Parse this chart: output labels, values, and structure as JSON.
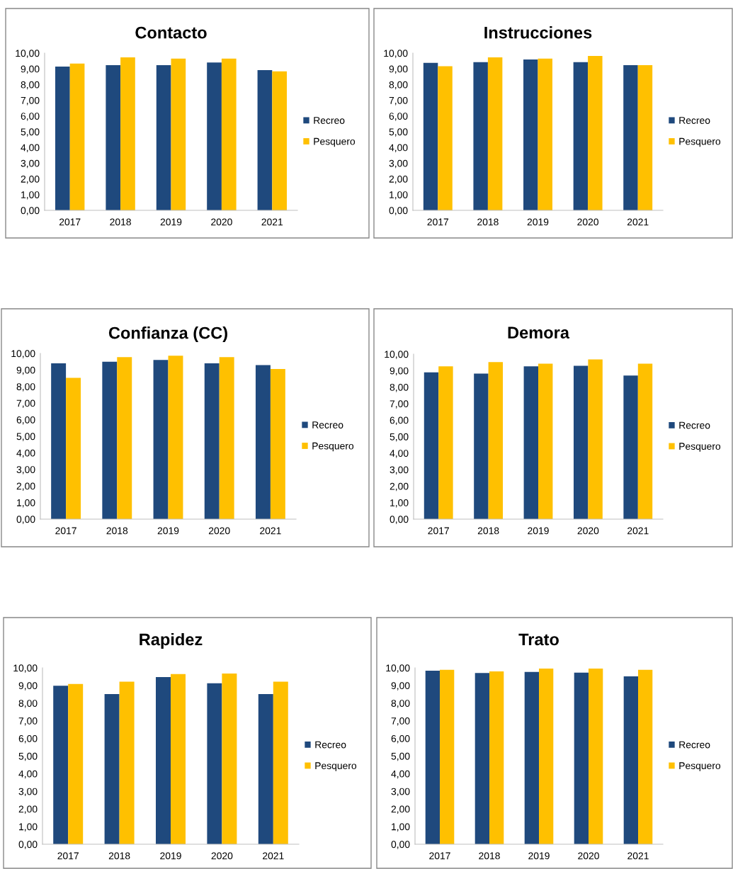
{
  "chart_data": [
    {
      "type": "bar",
      "title": "Contacto",
      "categories": [
        "2017",
        "2018",
        "2019",
        "2020",
        "2021"
      ],
      "ylim": [
        0,
        10
      ],
      "yticks": [
        {
          "value": 0,
          "label": "0,00"
        },
        {
          "value": 1,
          "label": "1,00"
        },
        {
          "value": 2,
          "label": "2,00"
        },
        {
          "value": 3,
          "label": "3,00"
        },
        {
          "value": 4,
          "label": "4,00"
        },
        {
          "value": 5,
          "label": "5,00"
        },
        {
          "value": 6,
          "label": "6,00"
        },
        {
          "value": 7,
          "label": "7,00"
        },
        {
          "value": 8,
          "label": "8,00"
        },
        {
          "value": 9,
          "label": "9,00"
        },
        {
          "value": 10,
          "label": "10,00"
        }
      ],
      "legend": "right",
      "grid": false,
      "series": [
        {
          "name": "Recreo",
          "color": "#1f497d",
          "values": [
            9.14,
            9.23,
            9.23,
            9.4,
            8.92
          ]
        },
        {
          "name": "Pesquero",
          "color": "#ffc000",
          "values": [
            9.34,
            9.73,
            9.65,
            9.65,
            8.84
          ]
        }
      ]
    },
    {
      "type": "bar",
      "title": "Instrucciones",
      "categories": [
        "2017",
        "2018",
        "2019",
        "2020",
        "2021"
      ],
      "ylim": [
        0,
        10
      ],
      "yticks": [
        {
          "value": 0,
          "label": "0,00"
        },
        {
          "value": 1,
          "label": "1,00"
        },
        {
          "value": 2,
          "label": "2,00"
        },
        {
          "value": 3,
          "label": "3,00"
        },
        {
          "value": 4,
          "label": "4,00"
        },
        {
          "value": 5,
          "label": "5,00"
        },
        {
          "value": 6,
          "label": "6,00"
        },
        {
          "value": 7,
          "label": "7,00"
        },
        {
          "value": 8,
          "label": "8,00"
        },
        {
          "value": 9,
          "label": "9,00"
        },
        {
          "value": 10,
          "label": "10,00"
        }
      ],
      "legend": "right",
      "grid": false,
      "series": [
        {
          "name": "Recreo",
          "color": "#1f497d",
          "values": [
            9.38,
            9.43,
            9.59,
            9.43,
            9.23
          ]
        },
        {
          "name": "Pesquero",
          "color": "#ffc000",
          "values": [
            9.17,
            9.73,
            9.65,
            9.82,
            9.23
          ]
        }
      ]
    },
    {
      "type": "bar",
      "title": "Confianza (CC)",
      "categories": [
        "2017",
        "2018",
        "2019",
        "2020",
        "2021"
      ],
      "ylim": [
        0,
        10
      ],
      "yticks": [
        {
          "value": 0,
          "label": "0,00"
        },
        {
          "value": 1,
          "label": "1,00"
        },
        {
          "value": 2,
          "label": "2,00"
        },
        {
          "value": 3,
          "label": "3,00"
        },
        {
          "value": 4,
          "label": "4,00"
        },
        {
          "value": 5,
          "label": "5,00"
        },
        {
          "value": 6,
          "label": "6,00"
        },
        {
          "value": 7,
          "label": "7,00"
        },
        {
          "value": 8,
          "label": "8,00"
        },
        {
          "value": 9,
          "label": "9,00"
        },
        {
          "value": 10,
          "label": "10,00"
        }
      ],
      "legend": "right",
      "grid": false,
      "series": [
        {
          "name": "Recreo",
          "color": "#1f497d",
          "values": [
            9.4,
            9.5,
            9.6,
            9.4,
            9.29
          ]
        },
        {
          "name": "Pesquero",
          "color": "#ffc000",
          "values": [
            8.53,
            9.78,
            9.86,
            9.78,
            9.06
          ]
        }
      ]
    },
    {
      "type": "bar",
      "title": "Demora",
      "categories": [
        "2017",
        "2018",
        "2019",
        "2020",
        "2021"
      ],
      "ylim": [
        0,
        10
      ],
      "yticks": [
        {
          "value": 0,
          "label": "0,00"
        },
        {
          "value": 1,
          "label": "1,00"
        },
        {
          "value": 2,
          "label": "2,00"
        },
        {
          "value": 3,
          "label": "3,00"
        },
        {
          "value": 4,
          "label": "4,00"
        },
        {
          "value": 5,
          "label": "5,00"
        },
        {
          "value": 6,
          "label": "6,00"
        },
        {
          "value": 7,
          "label": "7,00"
        },
        {
          "value": 8,
          "label": "8,00"
        },
        {
          "value": 9,
          "label": "9,00"
        },
        {
          "value": 10,
          "label": "10,00"
        }
      ],
      "legend": "right",
      "grid": false,
      "series": [
        {
          "name": "Recreo",
          "color": "#1f497d",
          "values": [
            8.9,
            8.82,
            9.26,
            9.29,
            8.7
          ]
        },
        {
          "name": "Pesquero",
          "color": "#ffc000",
          "values": [
            9.26,
            9.52,
            9.42,
            9.68,
            9.42
          ]
        }
      ]
    },
    {
      "type": "bar",
      "title": "Rapidez",
      "categories": [
        "2017",
        "2018",
        "2019",
        "2020",
        "2021"
      ],
      "ylim": [
        0,
        10
      ],
      "yticks": [
        {
          "value": 0,
          "label": "0,00"
        },
        {
          "value": 1,
          "label": "1,00"
        },
        {
          "value": 2,
          "label": "2,00"
        },
        {
          "value": 3,
          "label": "3,00"
        },
        {
          "value": 4,
          "label": "4,00"
        },
        {
          "value": 5,
          "label": "5,00"
        },
        {
          "value": 6,
          "label": "6,00"
        },
        {
          "value": 7,
          "label": "7,00"
        },
        {
          "value": 8,
          "label": "8,00"
        },
        {
          "value": 9,
          "label": "9,00"
        },
        {
          "value": 10,
          "label": "10,00"
        }
      ],
      "legend": "right",
      "grid": false,
      "series": [
        {
          "name": "Recreo",
          "color": "#1f497d",
          "values": [
            8.99,
            8.51,
            9.48,
            9.13,
            8.51
          ]
        },
        {
          "name": "Pesquero",
          "color": "#ffc000",
          "values": [
            9.09,
            9.22,
            9.65,
            9.68,
            9.22
          ]
        }
      ]
    },
    {
      "type": "bar",
      "title": "Trato",
      "categories": [
        "2017",
        "2018",
        "2019",
        "2020",
        "2021"
      ],
      "ylim": [
        0,
        10
      ],
      "yticks": [
        {
          "value": 0,
          "label": "0,00"
        },
        {
          "value": 1,
          "label": "1,00"
        },
        {
          "value": 2,
          "label": "2,00"
        },
        {
          "value": 3,
          "label": "3,00"
        },
        {
          "value": 4,
          "label": "4,00"
        },
        {
          "value": 5,
          "label": "5,00"
        },
        {
          "value": 6,
          "label": "6,00"
        },
        {
          "value": 7,
          "label": "7,00"
        },
        {
          "value": 8,
          "label": "8,00"
        },
        {
          "value": 9,
          "label": "9,00"
        },
        {
          "value": 10,
          "label": "10,00"
        }
      ],
      "legend": "right",
      "grid": false,
      "series": [
        {
          "name": "Recreo",
          "color": "#1f497d",
          "values": [
            9.84,
            9.71,
            9.77,
            9.73,
            9.52
          ]
        },
        {
          "name": "Pesquero",
          "color": "#ffc000",
          "values": [
            9.89,
            9.8,
            9.96,
            9.96,
            9.89
          ]
        }
      ]
    }
  ]
}
